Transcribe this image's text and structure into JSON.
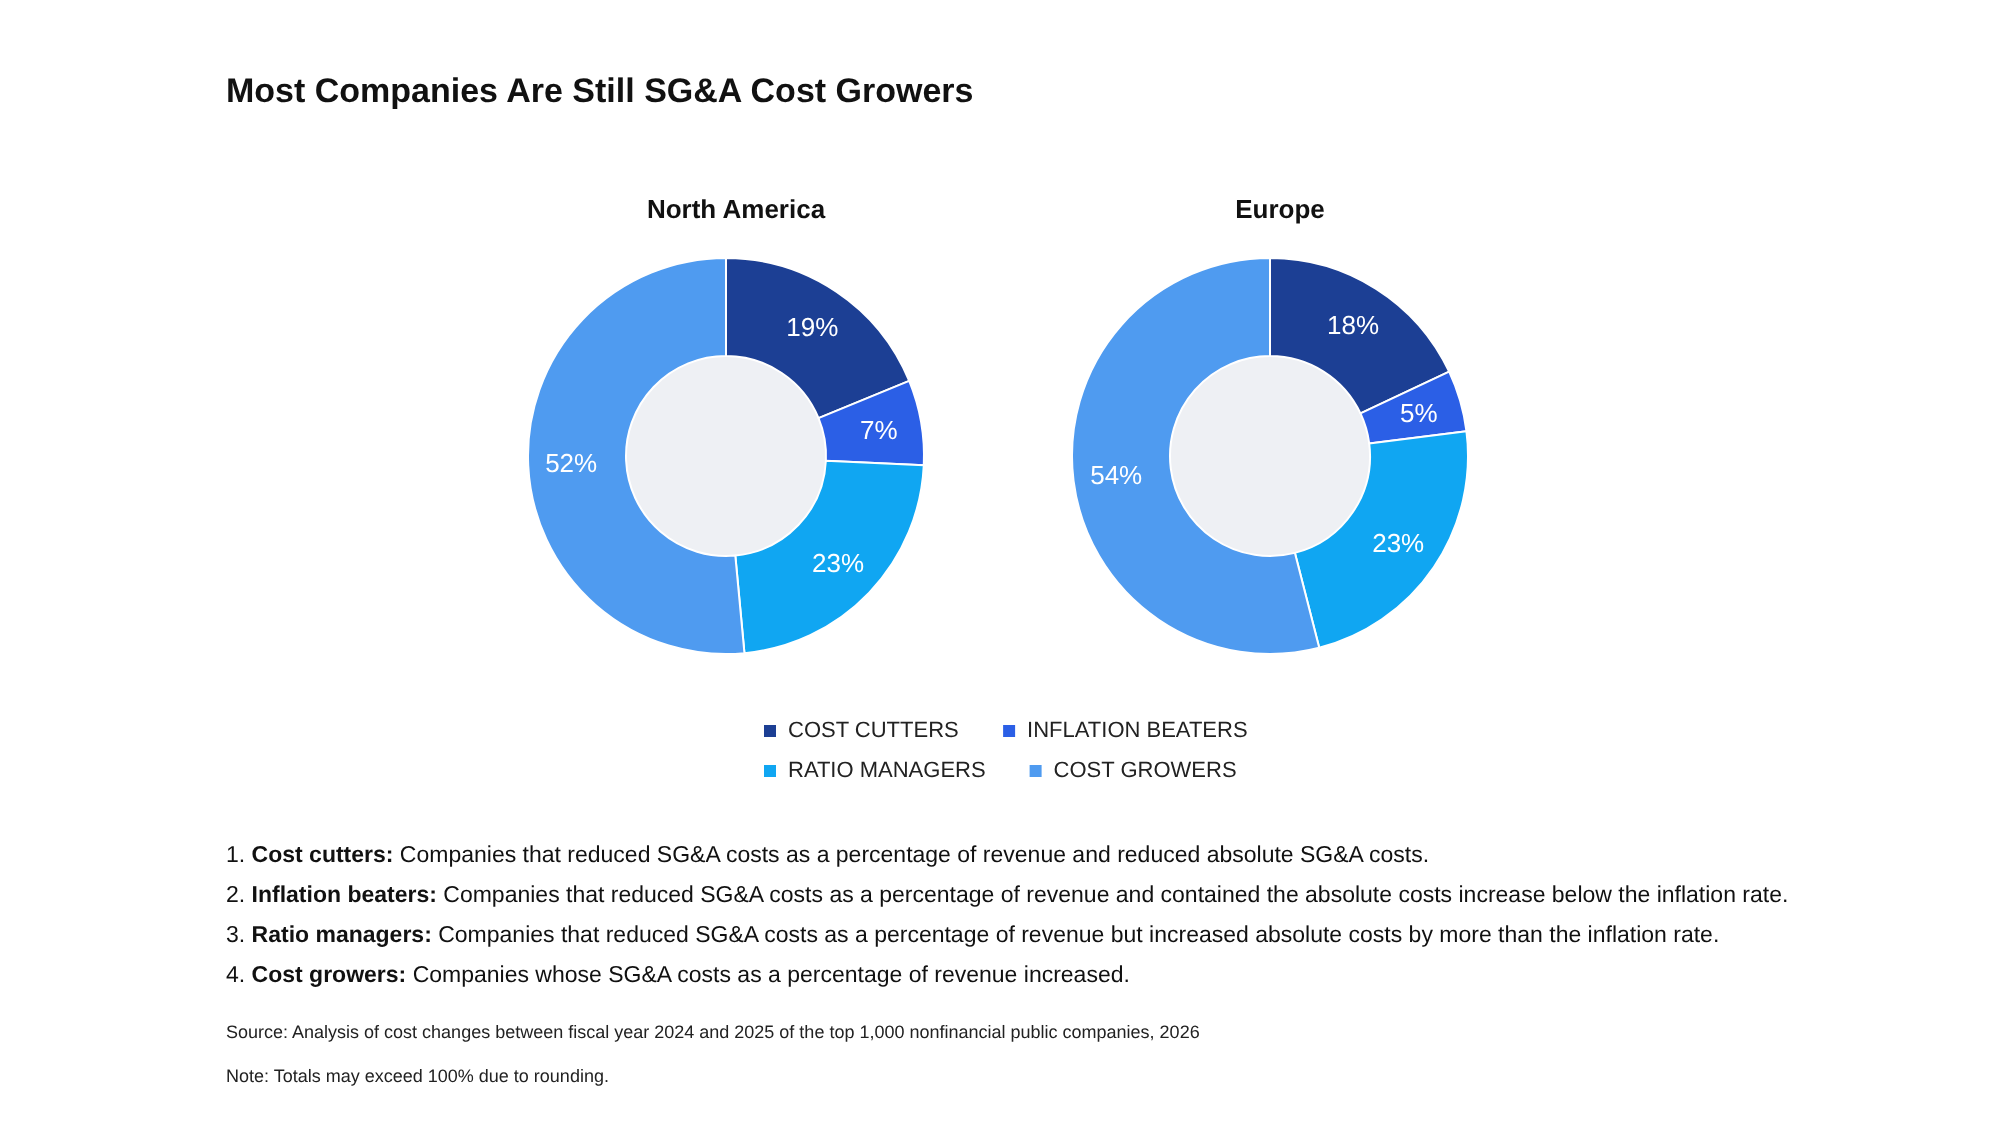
{
  "chart_data": {
    "type": "donut",
    "categories": [
      "COST CUTTERS",
      "INFLATION BEATERS",
      "RATIO MANAGERS",
      "COST GROWERS"
    ],
    "colors": [
      "#1c3f94",
      "#2b5fe6",
      "#10a6f2",
      "#4f9bf0"
    ],
    "legend": "bottom",
    "series": [
      {
        "name": "North America",
        "values": [
          19,
          7,
          23,
          52
        ],
        "value_labels": [
          "19%",
          "7%",
          "23%",
          "52%"
        ]
      },
      {
        "name": "Europe",
        "values": [
          18,
          5,
          23,
          54
        ],
        "value_labels": [
          "18%",
          "5%",
          "23%",
          "54%"
        ]
      }
    ],
    "annotations": [
      "Most Companies Are Still SG&A Cost Growers",
      "1.  Cost cutters: Companies that reduced SG&A costs as a percentage of revenue and reduced absolute SG&A costs.",
      "2. Inflation beaters: Companies that reduced SG&A costs as a percentage of revenue and contained the absolute costs increase below the inflation rate.",
      "3. Ratio managers: Companies that reduced SG&A costs as a percentage of revenue but increased absolute costs by more than the inflation rate.",
      "4. Cost growers: Companies whose SG&A costs as a percentage of revenue increased.",
      "Source: Analysis of cost changes between fiscal year 2024 and 2025 of the top 1,000 nonfinancial public companies, 2026",
      "Note: Totals may exceed 100% due to rounding."
    ]
  }
}
